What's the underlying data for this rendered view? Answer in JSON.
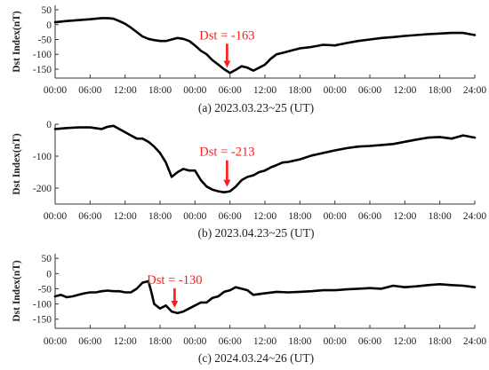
{
  "colors": {
    "line": "#000000",
    "annotation": "#ff1a1a",
    "axis": "#333333"
  },
  "chart_data": [
    {
      "type": "line",
      "caption": "(a) 2023.03.23~25 (UT)",
      "ylabel": "Dst Index(nT)",
      "ylim": [
        -180,
        65
      ],
      "yticks": [
        50,
        0,
        -50,
        -100,
        -150
      ],
      "xticks": [
        "00:00",
        "06:00",
        "12:00",
        "18:00",
        "00:00",
        "06:00",
        "12:00",
        "18:00",
        "00:00",
        "06:00",
        "12:00",
        "18:00",
        "24:00"
      ],
      "xlim_hours": [
        0,
        72
      ],
      "grid": false,
      "annotation": {
        "text": "Dst = -163",
        "x_hour": 29.5,
        "value": -163
      },
      "series": [
        {
          "x": [
            0,
            2,
            4,
            6,
            8,
            9,
            10,
            11,
            12,
            13,
            14,
            15,
            16,
            17,
            18,
            19,
            20,
            21,
            22,
            23,
            24,
            25,
            26,
            27,
            28,
            29,
            30,
            31,
            32,
            33,
            34,
            35,
            36,
            37,
            38,
            39,
            40,
            42,
            44,
            46,
            48,
            50,
            52,
            54,
            56,
            58,
            60,
            62,
            64,
            66,
            68,
            70,
            72
          ],
          "values": [
            8,
            12,
            15,
            18,
            22,
            22,
            20,
            12,
            3,
            -10,
            -25,
            -40,
            -48,
            -52,
            -55,
            -55,
            -50,
            -45,
            -48,
            -55,
            -70,
            -88,
            -100,
            -120,
            -135,
            -150,
            -163,
            -152,
            -140,
            -145,
            -155,
            -145,
            -135,
            -115,
            -100,
            -95,
            -90,
            -80,
            -75,
            -68,
            -70,
            -62,
            -55,
            -50,
            -45,
            -42,
            -38,
            -35,
            -32,
            -30,
            -28,
            -28,
            -35
          ]
        }
      ]
    },
    {
      "type": "line",
      "caption": "(b) 2023.04.23~25 (UT)",
      "ylabel": "Dst Index(nT)",
      "ylim": [
        -250,
        0
      ],
      "yticks": [
        0,
        -100,
        -200
      ],
      "xticks": [
        "00:00",
        "06:00",
        "12:00",
        "18:00",
        "00:00",
        "06:00",
        "12:00",
        "18:00",
        "00:00",
        "06:00",
        "12:00",
        "18:00",
        "24:00"
      ],
      "xlim_hours": [
        0,
        72
      ],
      "grid": false,
      "annotation": {
        "text": "Dst = -213",
        "x_hour": 29.5,
        "value": -213
      },
      "series": [
        {
          "x": [
            0,
            2,
            4,
            6,
            8,
            9,
            10,
            11,
            12,
            13,
            14,
            15,
            16,
            17,
            18,
            19,
            20,
            21,
            22,
            23,
            24,
            25,
            26,
            27,
            28,
            29,
            30,
            31,
            32,
            33,
            34,
            35,
            36,
            37,
            38,
            39,
            40,
            42,
            44,
            46,
            48,
            50,
            52,
            54,
            56,
            58,
            60,
            62,
            64,
            66,
            68,
            70,
            72
          ],
          "values": [
            -15,
            -12,
            -10,
            -10,
            -15,
            -8,
            -5,
            -15,
            -25,
            -35,
            -45,
            -45,
            -55,
            -70,
            -90,
            -120,
            -165,
            -150,
            -140,
            -145,
            -145,
            -175,
            -195,
            -205,
            -210,
            -213,
            -210,
            -195,
            -175,
            -165,
            -160,
            -150,
            -145,
            -135,
            -128,
            -120,
            -118,
            -110,
            -98,
            -90,
            -82,
            -75,
            -70,
            -68,
            -65,
            -62,
            -55,
            -48,
            -42,
            -40,
            -45,
            -35,
            -42
          ]
        }
      ]
    },
    {
      "type": "line",
      "caption": "(c) 2024.03.24~26 (UT)",
      "ylabel": "Dst Index(nT)",
      "ylim": [
        -180,
        65
      ],
      "yticks": [
        50,
        0,
        -50,
        -100,
        -150
      ],
      "xticks": [
        "00:00",
        "06:00",
        "12:00",
        "18:00",
        "00:00",
        "06:00",
        "12:00",
        "18:00",
        "00:00",
        "06:00",
        "12:00",
        "18:00",
        "24:00"
      ],
      "xlim_hours": [
        0,
        72
      ],
      "grid": false,
      "annotation": {
        "text": "Dst = -130",
        "x_hour": 20.5,
        "value": -130
      },
      "series": [
        {
          "x": [
            0,
            1,
            2,
            3,
            4,
            5,
            6,
            7,
            8,
            9,
            10,
            11,
            12,
            13,
            14,
            15,
            16,
            16.5,
            17,
            18,
            19,
            20,
            21,
            22,
            23,
            24,
            25,
            26,
            27,
            28,
            29,
            30,
            31,
            32,
            33,
            34,
            36,
            38,
            40,
            42,
            44,
            46,
            48,
            50,
            52,
            54,
            56,
            58,
            60,
            62,
            64,
            66,
            68,
            70,
            72
          ],
          "values": [
            -75,
            -70,
            -78,
            -75,
            -70,
            -65,
            -62,
            -62,
            -58,
            -56,
            -58,
            -58,
            -62,
            -62,
            -50,
            -30,
            -25,
            -60,
            -100,
            -115,
            -105,
            -125,
            -130,
            -125,
            -115,
            -105,
            -95,
            -95,
            -80,
            -75,
            -60,
            -55,
            -45,
            -50,
            -55,
            -70,
            -65,
            -60,
            -62,
            -60,
            -58,
            -55,
            -55,
            -52,
            -50,
            -48,
            -50,
            -40,
            -45,
            -42,
            -38,
            -35,
            -38,
            -40,
            -45
          ]
        }
      ]
    }
  ]
}
